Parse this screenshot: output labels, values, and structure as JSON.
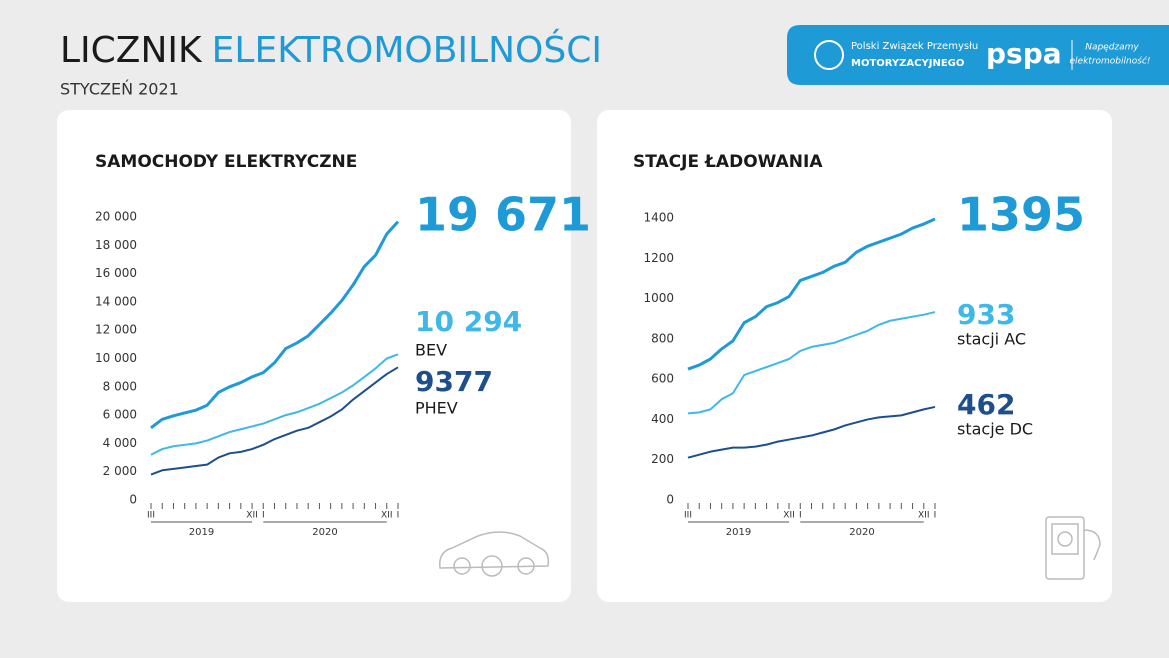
{
  "header": {
    "title_part1": "LICZNIK",
    "title_part2": "ELEKTROMOBILNOŚCI",
    "subtitle": "STYCZEŃ 2021"
  },
  "logo": {
    "org_line1": "Polski Związek Przemysłu",
    "org_line2": "MOTORYZACYJNEGO",
    "brand": "pspa",
    "slogan_line1": "Napędzamy",
    "slogan_line2": "elektromobilność!"
  },
  "chart_data": [
    {
      "type": "line",
      "title": "SAMOCHODY ELEKTRYCZNE",
      "categories": [
        "III",
        null,
        null,
        null,
        null,
        null,
        null,
        null,
        null,
        "XII",
        "I",
        null,
        null,
        null,
        null,
        null,
        null,
        null,
        null,
        null,
        null,
        "XII",
        "I"
      ],
      "groups": [
        {
          "label": "2019",
          "start": 0,
          "end": 9
        },
        {
          "label": "2020",
          "start": 10,
          "end": 21
        }
      ],
      "ylim": [
        0,
        20000
      ],
      "yticks": [
        0,
        {
          "value": 2000,
          "label": "2 000"
        },
        {
          "value": 4000,
          "label": "4 000"
        },
        {
          "value": 6000,
          "label": "6 000"
        },
        {
          "value": 8000,
          "label": "8 000"
        },
        {
          "value": 10000,
          "label": "10 000"
        },
        {
          "value": 12000,
          "label": "12 000"
        },
        {
          "value": 14000,
          "label": "14 000"
        },
        {
          "value": 16000,
          "label": "16 000"
        },
        {
          "value": 18000,
          "label": "18 000"
        },
        {
          "value": 20000,
          "label": "20 000"
        }
      ],
      "series": [
        {
          "color": "#1e9ad6",
          "values": [
            5100,
            5700,
            5950,
            6150,
            6350,
            6700,
            7600,
            8000,
            8300,
            8700,
            9000,
            9700,
            10700,
            11100,
            11600,
            12400,
            13200,
            14100,
            15200,
            16500,
            17300,
            18800,
            19671
          ],
          "value_labels": [
            null,
            null,
            null,
            null,
            null,
            null,
            null,
            null,
            null,
            null,
            null,
            null,
            null,
            null,
            null,
            null,
            null,
            null,
            null,
            null,
            null,
            null,
            "19 671"
          ]
        },
        {
          "name": "BEV",
          "color": "#3fb8e8",
          "values": [
            3200,
            3600,
            3800,
            3900,
            4000,
            4200,
            4500,
            4800,
            5000,
            5200,
            5400,
            5700,
            6000,
            6200,
            6500,
            6800,
            7200,
            7600,
            8100,
            8700,
            9300,
            10000,
            10294
          ],
          "value_labels": [
            null,
            null,
            null,
            null,
            null,
            null,
            null,
            null,
            null,
            null,
            null,
            null,
            null,
            null,
            null,
            null,
            null,
            null,
            null,
            null,
            null,
            null,
            "10 294"
          ]
        },
        {
          "name": "PHEV",
          "color": "#1d4f8c",
          "values": [
            1800,
            2100,
            2200,
            2300,
            2400,
            2500,
            3000,
            3300,
            3400,
            3600,
            3900,
            4300,
            4600,
            4900,
            5100,
            5500,
            5900,
            6400,
            7100,
            7700,
            8300,
            8900,
            9377
          ]
        }
      ]
    },
    {
      "type": "line",
      "title": "STACJE ŁADOWANIA",
      "categories": [
        "III",
        null,
        null,
        null,
        null,
        null,
        null,
        null,
        null,
        "XII",
        "I",
        null,
        null,
        null,
        null,
        null,
        null,
        null,
        null,
        null,
        null,
        "XII",
        "I"
      ],
      "groups": [
        {
          "label": "2019",
          "start": 0,
          "end": 9
        },
        {
          "label": "2020",
          "start": 10,
          "end": 21
        }
      ],
      "ylim": [
        0,
        1400
      ],
      "yticks": [
        0,
        200,
        400,
        600,
        800,
        1000,
        1200,
        1400
      ],
      "series": [
        {
          "color": "#1e9ad6",
          "values": [
            650,
            670,
            700,
            750,
            790,
            880,
            910,
            960,
            980,
            1010,
            1090,
            1110,
            1130,
            1160,
            1180,
            1230,
            1260,
            1280,
            1300,
            1320,
            1350,
            1370,
            1395
          ]
        },
        {
          "name": "stacji AC",
          "color": "#3fb8e8",
          "values": [
            430,
            435,
            450,
            500,
            530,
            620,
            640,
            660,
            680,
            700,
            740,
            760,
            770,
            780,
            800,
            820,
            840,
            870,
            890,
            900,
            910,
            920,
            933
          ]
        },
        {
          "name": "stacje DC",
          "color": "#1d4f8c",
          "values": [
            210,
            225,
            240,
            250,
            260,
            260,
            265,
            275,
            290,
            300,
            310,
            320,
            335,
            350,
            370,
            385,
            400,
            410,
            415,
            420,
            435,
            450,
            462
          ]
        }
      ]
    }
  ]
}
